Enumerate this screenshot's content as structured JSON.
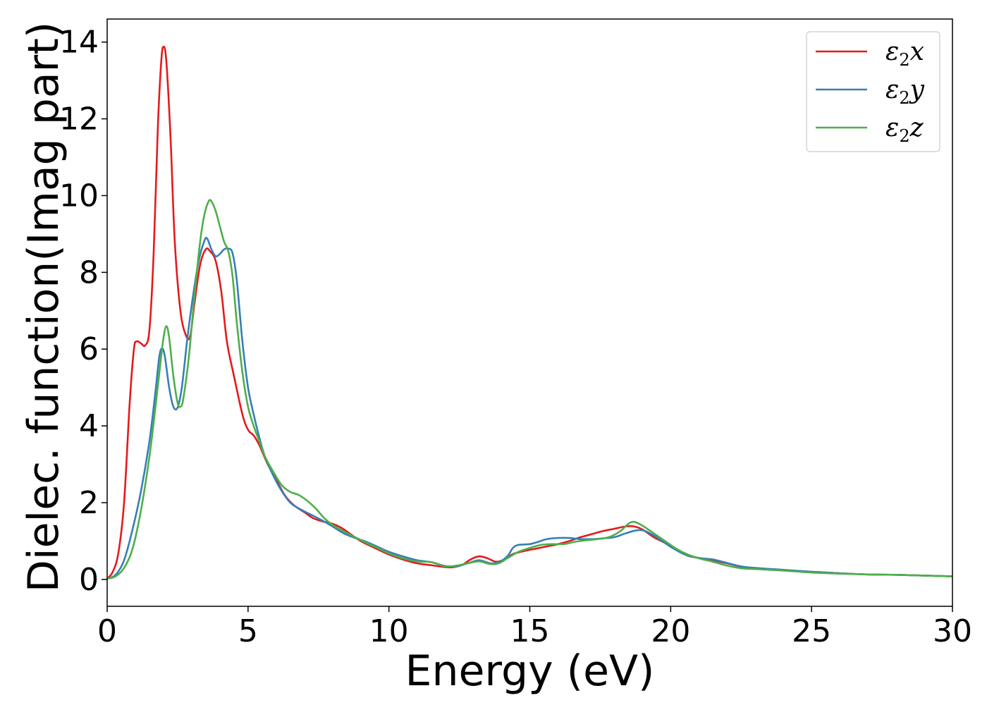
{
  "chart_data": {
    "type": "line",
    "title": "",
    "xlabel": "Energy (eV)",
    "ylabel": "Dielec. function(Imag part)",
    "xlim": [
      0,
      30
    ],
    "ylim": [
      -0.7,
      14.6
    ],
    "xticks": [
      0,
      5,
      10,
      15,
      20,
      25,
      30
    ],
    "yticks": [
      0,
      2,
      4,
      6,
      8,
      10,
      12,
      14
    ],
    "grid": false,
    "legend_position": "top-right",
    "series": [
      {
        "name": "ε2x",
        "legend": {
          "symbol": "ε",
          "sub": "2",
          "suffix": "x"
        },
        "color": "#e41a1c",
        "points": [
          [
            0,
            0.02
          ],
          [
            0.2,
            0.2
          ],
          [
            0.4,
            0.7
          ],
          [
            0.6,
            2.0
          ],
          [
            0.8,
            4.6
          ],
          [
            0.95,
            6.0
          ],
          [
            1.05,
            6.2
          ],
          [
            1.2,
            6.15
          ],
          [
            1.35,
            6.1
          ],
          [
            1.5,
            6.5
          ],
          [
            1.65,
            8.5
          ],
          [
            1.8,
            11.8
          ],
          [
            1.92,
            13.5
          ],
          [
            2.0,
            13.88
          ],
          [
            2.1,
            13.5
          ],
          [
            2.25,
            11.5
          ],
          [
            2.4,
            8.8
          ],
          [
            2.6,
            7.0
          ],
          [
            2.8,
            6.35
          ],
          [
            2.95,
            6.35
          ],
          [
            3.1,
            7.2
          ],
          [
            3.3,
            8.2
          ],
          [
            3.5,
            8.6
          ],
          [
            3.65,
            8.55
          ],
          [
            3.85,
            8.3
          ],
          [
            4.05,
            7.5
          ],
          [
            4.25,
            6.2
          ],
          [
            4.5,
            5.3
          ],
          [
            4.8,
            4.3
          ],
          [
            5.0,
            3.9
          ],
          [
            5.2,
            3.75
          ],
          [
            5.4,
            3.5
          ],
          [
            5.7,
            3.0
          ],
          [
            6.0,
            2.6
          ],
          [
            6.3,
            2.2
          ],
          [
            6.6,
            1.95
          ],
          [
            7.0,
            1.75
          ],
          [
            7.3,
            1.6
          ],
          [
            7.6,
            1.52
          ],
          [
            8.0,
            1.45
          ],
          [
            8.3,
            1.35
          ],
          [
            8.6,
            1.2
          ],
          [
            9.0,
            1.0
          ],
          [
            9.5,
            0.82
          ],
          [
            10.0,
            0.65
          ],
          [
            10.5,
            0.52
          ],
          [
            11.0,
            0.42
          ],
          [
            11.5,
            0.37
          ],
          [
            12.0,
            0.32
          ],
          [
            12.3,
            0.32
          ],
          [
            12.6,
            0.38
          ],
          [
            12.9,
            0.52
          ],
          [
            13.2,
            0.6
          ],
          [
            13.5,
            0.55
          ],
          [
            13.8,
            0.46
          ],
          [
            14.1,
            0.52
          ],
          [
            14.4,
            0.66
          ],
          [
            14.8,
            0.74
          ],
          [
            15.2,
            0.8
          ],
          [
            15.6,
            0.86
          ],
          [
            16.0,
            0.92
          ],
          [
            16.4,
            1.0
          ],
          [
            16.8,
            1.1
          ],
          [
            17.2,
            1.18
          ],
          [
            17.6,
            1.26
          ],
          [
            18.0,
            1.32
          ],
          [
            18.4,
            1.38
          ],
          [
            18.7,
            1.38
          ],
          [
            19.0,
            1.3
          ],
          [
            19.4,
            1.1
          ],
          [
            19.8,
            0.95
          ],
          [
            20.2,
            0.78
          ],
          [
            20.6,
            0.62
          ],
          [
            21.0,
            0.56
          ],
          [
            21.5,
            0.5
          ],
          [
            22.0,
            0.42
          ],
          [
            22.5,
            0.33
          ],
          [
            23.0,
            0.28
          ],
          [
            24.0,
            0.24
          ],
          [
            25.0,
            0.2
          ],
          [
            26.0,
            0.16
          ],
          [
            27.0,
            0.13
          ],
          [
            28.0,
            0.12
          ],
          [
            29.0,
            0.1
          ],
          [
            30.0,
            0.08
          ]
        ]
      },
      {
        "name": "ε2y",
        "legend": {
          "symbol": "ε",
          "sub": "2",
          "suffix": "y"
        },
        "color": "#377eb8",
        "points": [
          [
            0,
            0.02
          ],
          [
            0.3,
            0.12
          ],
          [
            0.6,
            0.5
          ],
          [
            0.9,
            1.3
          ],
          [
            1.2,
            2.3
          ],
          [
            1.5,
            3.6
          ],
          [
            1.7,
            4.8
          ],
          [
            1.85,
            5.8
          ],
          [
            1.95,
            6.02
          ],
          [
            2.05,
            5.8
          ],
          [
            2.2,
            5.0
          ],
          [
            2.35,
            4.5
          ],
          [
            2.5,
            4.48
          ],
          [
            2.65,
            5.0
          ],
          [
            2.85,
            6.3
          ],
          [
            3.05,
            7.4
          ],
          [
            3.25,
            8.3
          ],
          [
            3.45,
            8.82
          ],
          [
            3.55,
            8.88
          ],
          [
            3.7,
            8.6
          ],
          [
            3.85,
            8.42
          ],
          [
            4.0,
            8.48
          ],
          [
            4.15,
            8.6
          ],
          [
            4.3,
            8.62
          ],
          [
            4.45,
            8.5
          ],
          [
            4.6,
            7.8
          ],
          [
            4.8,
            6.2
          ],
          [
            5.0,
            5.0
          ],
          [
            5.2,
            4.3
          ],
          [
            5.4,
            3.7
          ],
          [
            5.6,
            3.2
          ],
          [
            5.9,
            2.7
          ],
          [
            6.2,
            2.3
          ],
          [
            6.5,
            2.0
          ],
          [
            6.8,
            1.85
          ],
          [
            7.2,
            1.7
          ],
          [
            7.6,
            1.55
          ],
          [
            8.0,
            1.38
          ],
          [
            8.4,
            1.2
          ],
          [
            8.8,
            1.08
          ],
          [
            9.2,
            0.98
          ],
          [
            9.6,
            0.85
          ],
          [
            10.0,
            0.72
          ],
          [
            10.5,
            0.6
          ],
          [
            11.0,
            0.5
          ],
          [
            11.5,
            0.45
          ],
          [
            12.0,
            0.35
          ],
          [
            12.4,
            0.34
          ],
          [
            12.8,
            0.42
          ],
          [
            13.2,
            0.5
          ],
          [
            13.6,
            0.42
          ],
          [
            13.9,
            0.45
          ],
          [
            14.2,
            0.6
          ],
          [
            14.4,
            0.82
          ],
          [
            14.6,
            0.9
          ],
          [
            15.0,
            0.92
          ],
          [
            15.3,
            0.98
          ],
          [
            15.6,
            1.05
          ],
          [
            16.0,
            1.08
          ],
          [
            16.4,
            1.08
          ],
          [
            16.8,
            1.05
          ],
          [
            17.2,
            1.05
          ],
          [
            17.6,
            1.07
          ],
          [
            18.0,
            1.1
          ],
          [
            18.4,
            1.2
          ],
          [
            18.8,
            1.28
          ],
          [
            19.1,
            1.26
          ],
          [
            19.5,
            1.1
          ],
          [
            20.0,
            0.85
          ],
          [
            20.5,
            0.65
          ],
          [
            21.0,
            0.56
          ],
          [
            21.5,
            0.52
          ],
          [
            22.0,
            0.43
          ],
          [
            22.5,
            0.34
          ],
          [
            23.0,
            0.3
          ],
          [
            24.0,
            0.25
          ],
          [
            25.0,
            0.2
          ],
          [
            26.0,
            0.16
          ],
          [
            27.0,
            0.13
          ],
          [
            28.0,
            0.12
          ],
          [
            29.0,
            0.1
          ],
          [
            30.0,
            0.08
          ]
        ]
      },
      {
        "name": "ε2z",
        "legend": {
          "symbol": "ε",
          "sub": "2",
          "suffix": "z"
        },
        "color": "#4daf4a",
        "points": [
          [
            0,
            0.02
          ],
          [
            0.3,
            0.08
          ],
          [
            0.6,
            0.3
          ],
          [
            0.9,
            0.8
          ],
          [
            1.2,
            1.8
          ],
          [
            1.5,
            3.2
          ],
          [
            1.7,
            4.4
          ],
          [
            1.9,
            5.7
          ],
          [
            2.0,
            6.3
          ],
          [
            2.1,
            6.6
          ],
          [
            2.2,
            6.3
          ],
          [
            2.35,
            5.3
          ],
          [
            2.5,
            4.6
          ],
          [
            2.6,
            4.5
          ],
          [
            2.7,
            4.7
          ],
          [
            2.9,
            5.8
          ],
          [
            3.1,
            7.4
          ],
          [
            3.3,
            8.8
          ],
          [
            3.45,
            9.5
          ],
          [
            3.6,
            9.85
          ],
          [
            3.7,
            9.85
          ],
          [
            3.85,
            9.6
          ],
          [
            4.0,
            9.2
          ],
          [
            4.15,
            8.8
          ],
          [
            4.3,
            8.55
          ],
          [
            4.45,
            7.9
          ],
          [
            4.6,
            6.7
          ],
          [
            4.8,
            5.4
          ],
          [
            5.0,
            4.5
          ],
          [
            5.2,
            4.0
          ],
          [
            5.4,
            3.6
          ],
          [
            5.6,
            3.2
          ],
          [
            5.9,
            2.8
          ],
          [
            6.2,
            2.45
          ],
          [
            6.5,
            2.28
          ],
          [
            6.8,
            2.2
          ],
          [
            7.1,
            2.05
          ],
          [
            7.4,
            1.85
          ],
          [
            7.7,
            1.6
          ],
          [
            8.0,
            1.42
          ],
          [
            8.4,
            1.25
          ],
          [
            8.8,
            1.1
          ],
          [
            9.2,
            0.95
          ],
          [
            9.6,
            0.82
          ],
          [
            10.0,
            0.68
          ],
          [
            10.5,
            0.55
          ],
          [
            11.0,
            0.47
          ],
          [
            11.5,
            0.45
          ],
          [
            12.0,
            0.34
          ],
          [
            12.4,
            0.36
          ],
          [
            12.8,
            0.42
          ],
          [
            13.2,
            0.47
          ],
          [
            13.6,
            0.4
          ],
          [
            13.9,
            0.42
          ],
          [
            14.2,
            0.55
          ],
          [
            14.6,
            0.72
          ],
          [
            15.0,
            0.82
          ],
          [
            15.4,
            0.9
          ],
          [
            15.8,
            0.92
          ],
          [
            16.2,
            0.92
          ],
          [
            16.6,
            0.98
          ],
          [
            17.0,
            1.02
          ],
          [
            17.4,
            1.05
          ],
          [
            17.8,
            1.1
          ],
          [
            18.2,
            1.25
          ],
          [
            18.5,
            1.45
          ],
          [
            18.7,
            1.5
          ],
          [
            19.0,
            1.4
          ],
          [
            19.4,
            1.2
          ],
          [
            19.8,
            1.0
          ],
          [
            20.2,
            0.8
          ],
          [
            20.6,
            0.65
          ],
          [
            21.0,
            0.55
          ],
          [
            21.5,
            0.46
          ],
          [
            22.0,
            0.36
          ],
          [
            22.5,
            0.29
          ],
          [
            23.0,
            0.27
          ],
          [
            24.0,
            0.23
          ],
          [
            25.0,
            0.18
          ],
          [
            26.0,
            0.15
          ],
          [
            27.0,
            0.13
          ],
          [
            28.0,
            0.12
          ],
          [
            29.0,
            0.1
          ],
          [
            30.0,
            0.08
          ]
        ]
      }
    ]
  }
}
